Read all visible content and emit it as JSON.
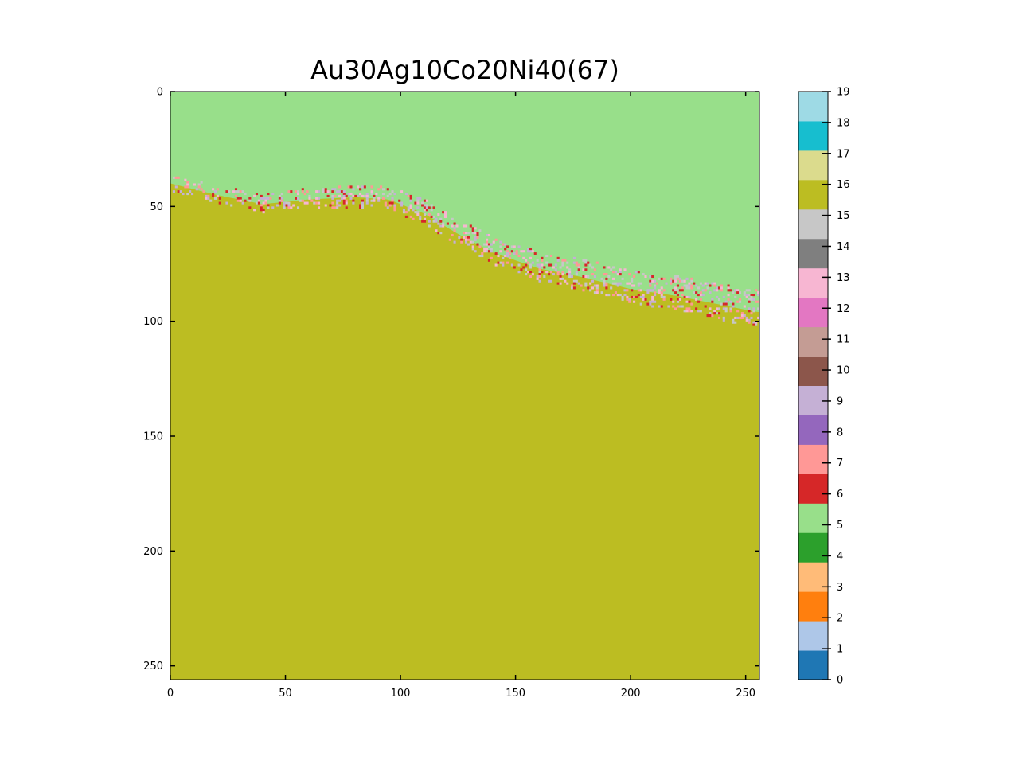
{
  "chart_data": {
    "type": "heatmap",
    "title": "Au30Ag10Co20Ni40(67)",
    "xlabel": "",
    "ylabel": "",
    "grid_size": 256,
    "x_ticks": [
      0,
      50,
      100,
      150,
      200,
      250
    ],
    "y_ticks": [
      0,
      50,
      100,
      150,
      200,
      250
    ],
    "xlim": [
      0,
      256
    ],
    "ylim": [
      256,
      0
    ],
    "colorbar": {
      "range": [
        0,
        19
      ],
      "ticks": [
        0,
        1,
        2,
        3,
        4,
        5,
        6,
        7,
        8,
        9,
        10,
        11,
        12,
        13,
        14,
        15,
        16,
        17,
        18,
        19
      ],
      "colors": [
        "#1f77b4",
        "#aec7e8",
        "#ff7f0e",
        "#ffbb78",
        "#2ca02c",
        "#98df8a",
        "#d62728",
        "#ff9896",
        "#9467bd",
        "#c5b0d5",
        "#8c564b",
        "#c49c94",
        "#e377c2",
        "#f7b6d2",
        "#7f7f7f",
        "#c7c7c7",
        "#bcbd22",
        "#dbdb8d",
        "#17becf",
        "#9edae5"
      ]
    },
    "regions": [
      {
        "value": 5,
        "description": "upper region (rows ~0-45 at x=0, to ~88 at x=255)"
      },
      {
        "value": 16,
        "description": "lower region (below interface)"
      }
    ],
    "interface_boundary": {
      "x": [
        0,
        20,
        40,
        60,
        80,
        95,
        110,
        125,
        140,
        160,
        180,
        200,
        220,
        240,
        255
      ],
      "y": [
        40,
        45,
        49,
        47,
        46,
        47,
        53,
        62,
        70,
        77,
        81,
        86,
        89,
        93,
        96
      ]
    },
    "interface_mixed_values": [
      6,
      7,
      9,
      13,
      15
    ]
  }
}
